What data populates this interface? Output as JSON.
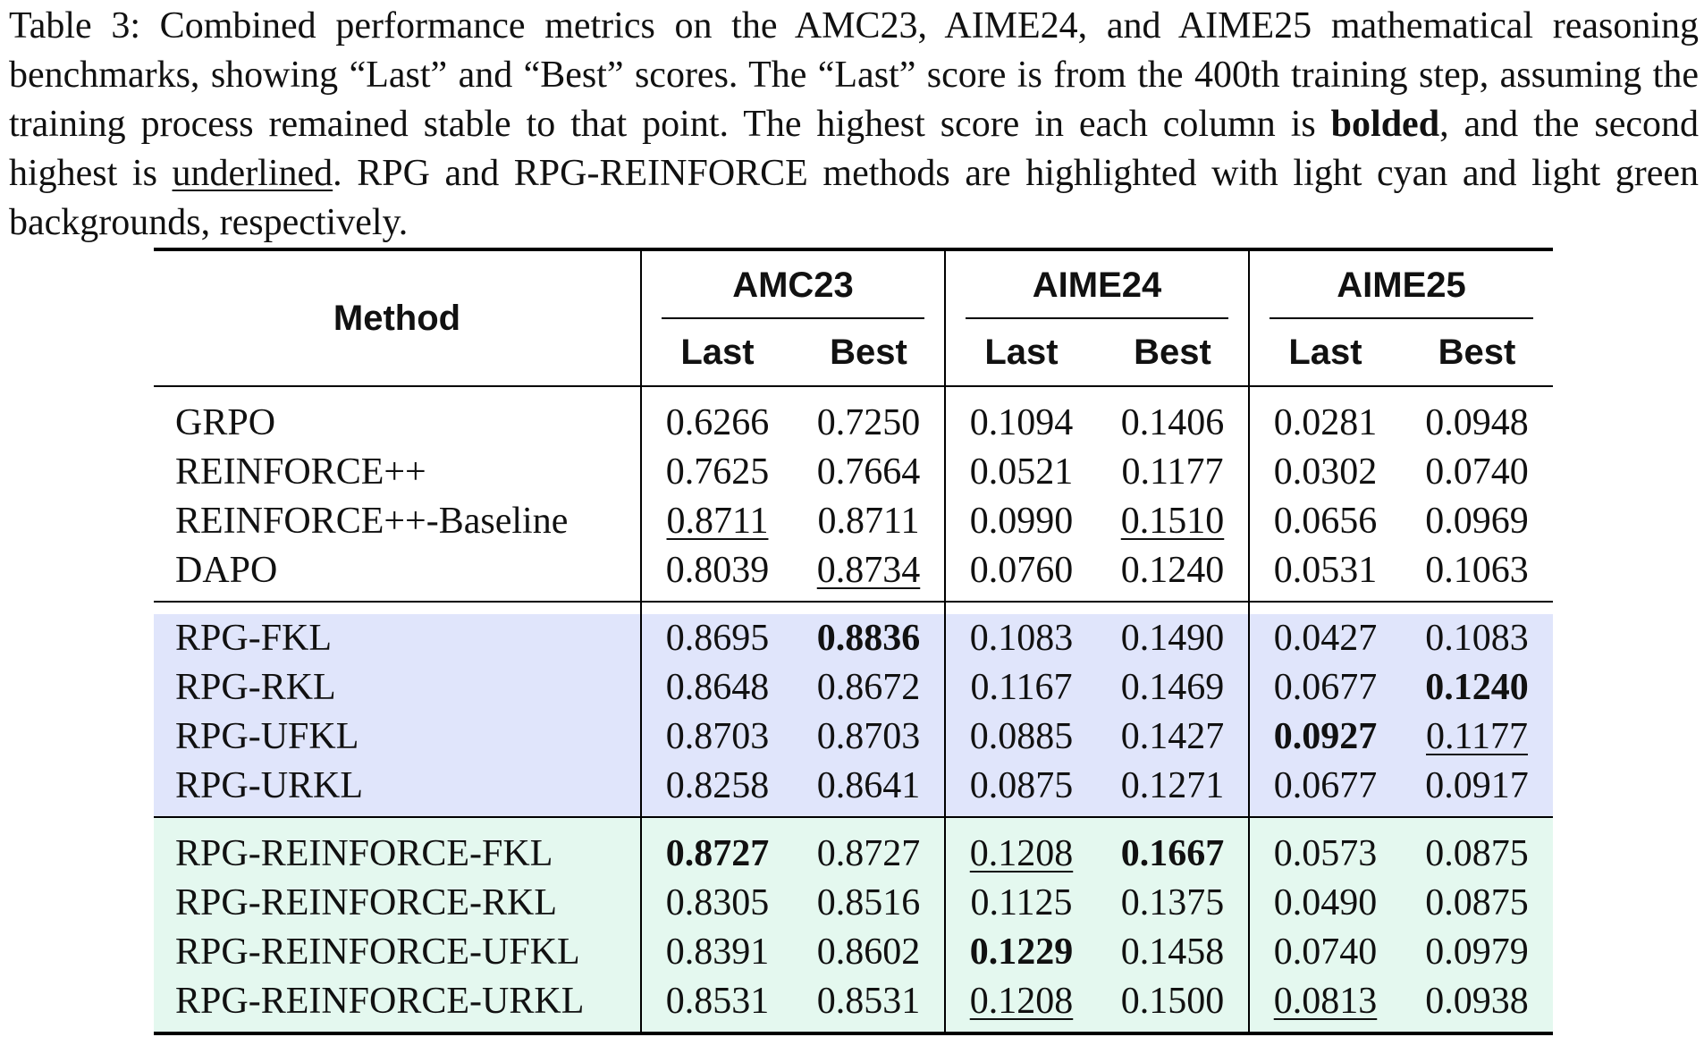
{
  "caption": {
    "part1": "Table 3: Combined performance metrics on the AMC23, AIME24, and AIME25 mathematical reasoning benchmarks, showing “Last” and “Best” scores. The “Last” score is from the 400th training step, assuming the training process remained stable to that point. The highest score in each column is ",
    "bold_word": "bolded",
    "part2": ", and the second highest is ",
    "underlined_word": "underlined",
    "part3": ". RPG and RPG-REINFORCE methods are highlighted with light cyan and light green backgrounds, respectively."
  },
  "table": {
    "method_header": "Method",
    "groups": [
      "AMC23",
      "AIME24",
      "AIME25"
    ],
    "subheaders": [
      "Last",
      "Best",
      "Last",
      "Best",
      "Last",
      "Best"
    ],
    "sections": [
      {
        "rows": [
          {
            "method": "GRPO",
            "values": [
              "0.6266",
              "0.7250",
              "0.1094",
              "0.1406",
              "0.0281",
              "0.0948"
            ]
          },
          {
            "method": "REINFORCE++",
            "values": [
              "0.7625",
              "0.7664",
              "0.0521",
              "0.1177",
              "0.0302",
              "0.0740"
            ]
          },
          {
            "method": "REINFORCE++-Baseline",
            "values": [
              "0.8711",
              "0.8711",
              "0.0990",
              "0.1510",
              "0.0656",
              "0.0969"
            ]
          },
          {
            "method": "DAPO",
            "values": [
              "0.8039",
              "0.8734",
              "0.0760",
              "0.1240",
              "0.0531",
              "0.1063"
            ]
          }
        ]
      },
      {
        "rows": [
          {
            "method": "RPG-FKL",
            "values": [
              "0.8695",
              "0.8836",
              "0.1083",
              "0.1490",
              "0.0427",
              "0.1083"
            ]
          },
          {
            "method": "RPG-RKL",
            "values": [
              "0.8648",
              "0.8672",
              "0.1167",
              "0.1469",
              "0.0677",
              "0.1240"
            ]
          },
          {
            "method": "RPG-UFKL",
            "values": [
              "0.8703",
              "0.8703",
              "0.0885",
              "0.1427",
              "0.0927",
              "0.1177"
            ]
          },
          {
            "method": "RPG-URKL",
            "values": [
              "0.8258",
              "0.8641",
              "0.0875",
              "0.1271",
              "0.0677",
              "0.0917"
            ]
          }
        ]
      },
      {
        "rows": [
          {
            "method": "RPG-REINFORCE-FKL",
            "values": [
              "0.8727",
              "0.8727",
              "0.1208",
              "0.1667",
              "0.0573",
              "0.0875"
            ]
          },
          {
            "method": "RPG-REINFORCE-RKL",
            "values": [
              "0.8305",
              "0.8516",
              "0.1125",
              "0.1375",
              "0.0490",
              "0.0875"
            ]
          },
          {
            "method": "RPG-REINFORCE-UFKL",
            "values": [
              "0.8391",
              "0.8602",
              "0.1229",
              "0.1458",
              "0.0740",
              "0.0979"
            ]
          },
          {
            "method": "RPG-REINFORCE-URKL",
            "values": [
              "0.8531",
              "0.8531",
              "0.1208",
              "0.1500",
              "0.0813",
              "0.0938"
            ]
          }
        ]
      }
    ]
  }
}
